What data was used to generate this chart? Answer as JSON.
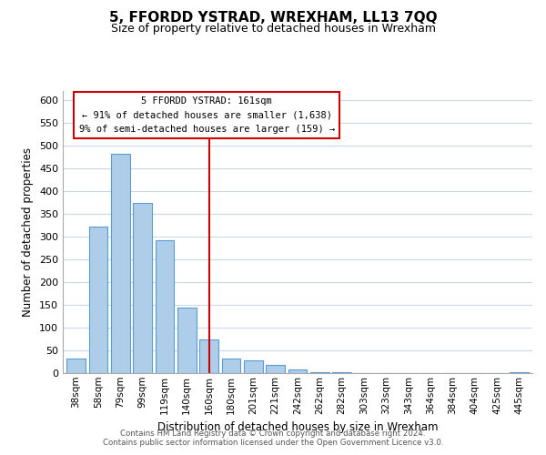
{
  "title": "5, FFORDD YSTRAD, WREXHAM, LL13 7QQ",
  "subtitle": "Size of property relative to detached houses in Wrexham",
  "xlabel": "Distribution of detached houses by size in Wrexham",
  "ylabel": "Number of detached properties",
  "bar_labels": [
    "38sqm",
    "58sqm",
    "79sqm",
    "99sqm",
    "119sqm",
    "140sqm",
    "160sqm",
    "180sqm",
    "201sqm",
    "221sqm",
    "242sqm",
    "262sqm",
    "282sqm",
    "303sqm",
    "323sqm",
    "343sqm",
    "364sqm",
    "384sqm",
    "404sqm",
    "425sqm",
    "445sqm"
  ],
  "bar_values": [
    32,
    323,
    483,
    375,
    292,
    145,
    75,
    32,
    29,
    18,
    8,
    3,
    2,
    1,
    0,
    0,
    0,
    0,
    0,
    0,
    3
  ],
  "bar_color": "#aecde8",
  "bar_edge_color": "#5b9bd5",
  "marker_index": 6,
  "marker_label": "5 FFORDD YSTRAD: 161sqm",
  "annotation_line1": "← 91% of detached houses are smaller (1,638)",
  "annotation_line2": "9% of semi-detached houses are larger (159) →",
  "marker_color": "#cc0000",
  "ylim": [
    0,
    620
  ],
  "yticks": [
    0,
    50,
    100,
    150,
    200,
    250,
    300,
    350,
    400,
    450,
    500,
    550,
    600
  ],
  "footer_line1": "Contains HM Land Registry data © Crown copyright and database right 2024.",
  "footer_line2": "Contains public sector information licensed under the Open Government Licence v3.0.",
  "bg_color": "#ffffff",
  "grid_color": "#c8d8e8"
}
